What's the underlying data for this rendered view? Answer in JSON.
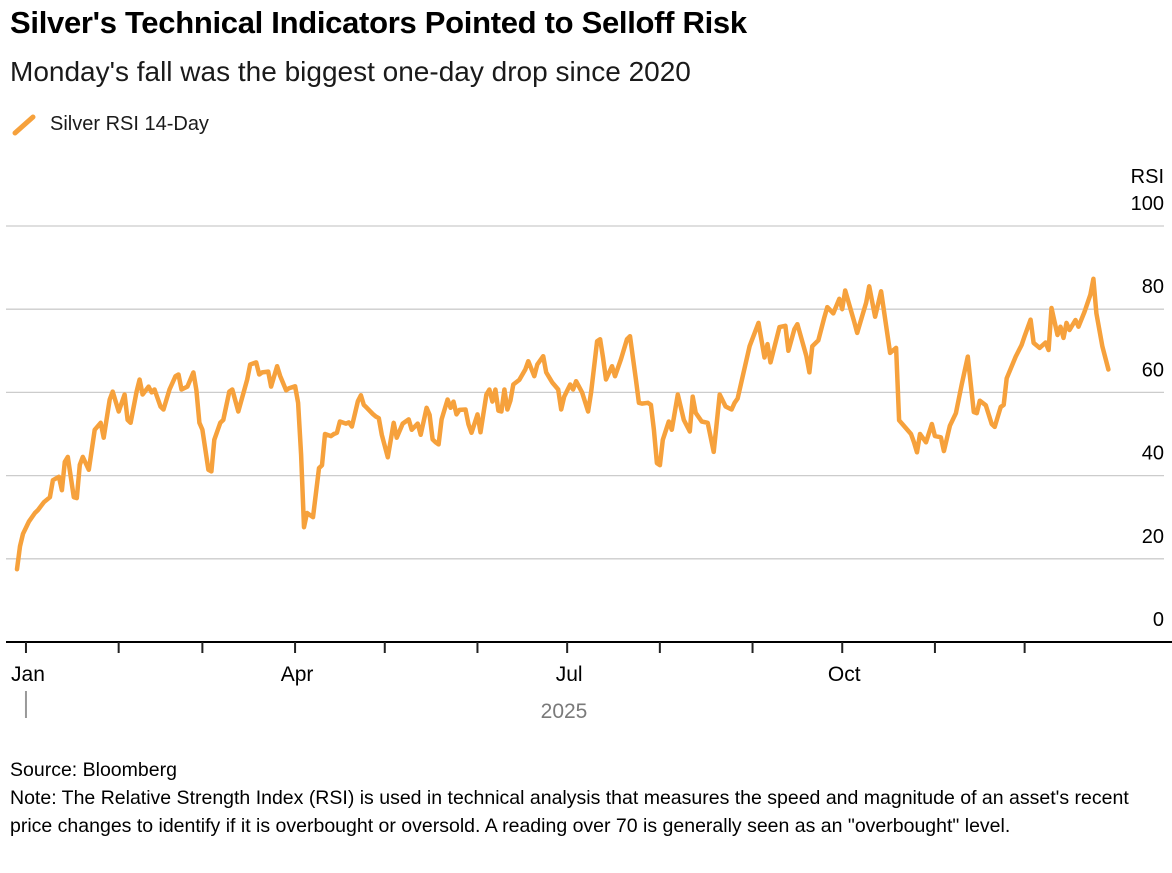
{
  "header": {
    "title": "Silver's Technical Indicators Pointed to Selloff Risk",
    "subtitle": "Monday's fall was the biggest one-day drop since 2020"
  },
  "footer": {
    "source": "Source: Bloomberg",
    "note": "Note: The Relative Strength Index (RSI) is used in technical analysis that measures the speed and magnitude of an asset's recent price changes to identify if it is overbought or oversold. A reading over 70 is generally seen as an \"overbought\" level."
  },
  "chart_data": {
    "type": "line",
    "title": "Silver RSI 14-Day",
    "line_color": "#F6A13C",
    "grid_color": "#cccccc",
    "axis_color": "#000000",
    "tick_color": "#222222",
    "year_color": "#7a7a7a",
    "legend_position": "top-left",
    "grid": true,
    "y_axis": {
      "label": "RSI",
      "ticks": [
        0,
        20,
        40,
        60,
        80,
        100
      ],
      "range": [
        0,
        100
      ],
      "side": "right"
    },
    "x_axis": {
      "year_label": "2025",
      "year_tick_day": 3,
      "month_ticks": [
        {
          "label": "Jan",
          "day": 3
        },
        {
          "label": "",
          "day": 34
        },
        {
          "label": "",
          "day": 62
        },
        {
          "label": "Apr",
          "day": 93
        },
        {
          "label": "",
          "day": 123
        },
        {
          "label": "",
          "day": 154
        },
        {
          "label": "Jul",
          "day": 184
        },
        {
          "label": "",
          "day": 215
        },
        {
          "label": "",
          "day": 246
        },
        {
          "label": "Oct",
          "day": 276
        },
        {
          "label": "",
          "day": 307
        },
        {
          "label": "",
          "day": 337
        }
      ]
    },
    "series": [
      {
        "name": "Silver RSI 14-Day",
        "points": [
          [
            0,
            17.5
          ],
          [
            1,
            23
          ],
          [
            2,
            26
          ],
          [
            3,
            27.5
          ],
          [
            4,
            29
          ],
          [
            6,
            31
          ],
          [
            7,
            31.7
          ],
          [
            9,
            33.6
          ],
          [
            11,
            34.8
          ],
          [
            12,
            38.9
          ],
          [
            14,
            39.7
          ],
          [
            15,
            36.5
          ],
          [
            16,
            43.3
          ],
          [
            17,
            44.5
          ],
          [
            19,
            34.8
          ],
          [
            20,
            34.6
          ],
          [
            21,
            42.6
          ],
          [
            22,
            44.5
          ],
          [
            24,
            41.4
          ],
          [
            26,
            51
          ],
          [
            28,
            52.7
          ],
          [
            29,
            49.1
          ],
          [
            31,
            58.3
          ],
          [
            32,
            60.2
          ],
          [
            34,
            55.4
          ],
          [
            36,
            59.5
          ],
          [
            37,
            53.4
          ],
          [
            38,
            52.7
          ],
          [
            40,
            60.2
          ],
          [
            41,
            63.1
          ],
          [
            42,
            59.5
          ],
          [
            44,
            61.4
          ],
          [
            45,
            60
          ],
          [
            46,
            60.7
          ],
          [
            48,
            56.6
          ],
          [
            49,
            55.9
          ],
          [
            51,
            60.7
          ],
          [
            53,
            63.9
          ],
          [
            54,
            64.3
          ],
          [
            55,
            60.7
          ],
          [
            57,
            61.4
          ],
          [
            59,
            64.8
          ],
          [
            60,
            60.5
          ],
          [
            61,
            52.7
          ],
          [
            62,
            51
          ],
          [
            64,
            41.4
          ],
          [
            65,
            41
          ],
          [
            66,
            48.6
          ],
          [
            68,
            52.7
          ],
          [
            69,
            53.4
          ],
          [
            71,
            60.2
          ],
          [
            72,
            60.7
          ],
          [
            74,
            55.4
          ],
          [
            77,
            63.1
          ],
          [
            78,
            66.7
          ],
          [
            80,
            67.2
          ],
          [
            81,
            64.3
          ],
          [
            82,
            64.8
          ],
          [
            84,
            65
          ],
          [
            85,
            61.4
          ],
          [
            87,
            66.3
          ],
          [
            88,
            64
          ],
          [
            90,
            60.5
          ],
          [
            91,
            61
          ],
          [
            93,
            61.5
          ],
          [
            94,
            57.5
          ],
          [
            95,
            45
          ],
          [
            96,
            27.6
          ],
          [
            97,
            31
          ],
          [
            99,
            30
          ],
          [
            101,
            41.8
          ],
          [
            102,
            42.5
          ],
          [
            103,
            50
          ],
          [
            105,
            49.5
          ],
          [
            106,
            50
          ],
          [
            107,
            50.3
          ],
          [
            108,
            53
          ],
          [
            110,
            52.5
          ],
          [
            111,
            52.8
          ],
          [
            112,
            51.8
          ],
          [
            114,
            57.9
          ],
          [
            115,
            59.3
          ],
          [
            116,
            57
          ],
          [
            117,
            56.3
          ],
          [
            119,
            54.8
          ],
          [
            120,
            54.2
          ],
          [
            121,
            53.8
          ],
          [
            122,
            49.8
          ],
          [
            124,
            44.4
          ],
          [
            126,
            52.7
          ],
          [
            127,
            49.1
          ],
          [
            129,
            52.5
          ],
          [
            131,
            53.5
          ],
          [
            132,
            51
          ],
          [
            134,
            52.5
          ],
          [
            135,
            49.8
          ],
          [
            137,
            56.3
          ],
          [
            138,
            54.6
          ],
          [
            139,
            48.7
          ],
          [
            140,
            48
          ],
          [
            141,
            47.5
          ],
          [
            142,
            53.5
          ],
          [
            144,
            58.3
          ],
          [
            145,
            56.3
          ],
          [
            146,
            57.8
          ],
          [
            147,
            54.7
          ],
          [
            148,
            55.8
          ],
          [
            150,
            55.9
          ],
          [
            151,
            52.3
          ],
          [
            152,
            50.3
          ],
          [
            154,
            54.7
          ],
          [
            155,
            50.4
          ],
          [
            157,
            59.5
          ],
          [
            158,
            60.7
          ],
          [
            159,
            57.8
          ],
          [
            160,
            60.7
          ],
          [
            161,
            55.6
          ],
          [
            162,
            55.4
          ],
          [
            163,
            60.7
          ],
          [
            164,
            55.9
          ],
          [
            165,
            58
          ],
          [
            166,
            61.9
          ],
          [
            168,
            63
          ],
          [
            170,
            65.5
          ],
          [
            171,
            67.5
          ],
          [
            173,
            63.9
          ],
          [
            174,
            66.7
          ],
          [
            176,
            68.7
          ],
          [
            177,
            64.8
          ],
          [
            179,
            62.4
          ],
          [
            181,
            60.7
          ],
          [
            182,
            55.9
          ],
          [
            183,
            59
          ],
          [
            185,
            61.9
          ],
          [
            186,
            60.7
          ],
          [
            187,
            62.7
          ],
          [
            189,
            60
          ],
          [
            191,
            55.4
          ],
          [
            192,
            60
          ],
          [
            194,
            72.3
          ],
          [
            195,
            72.8
          ],
          [
            196,
            68.4
          ],
          [
            197,
            63.1
          ],
          [
            199,
            66.3
          ],
          [
            200,
            63.9
          ],
          [
            202,
            68
          ],
          [
            204,
            72.8
          ],
          [
            205,
            73.5
          ],
          [
            207,
            63.1
          ],
          [
            208,
            57.5
          ],
          [
            209,
            57.3
          ],
          [
            211,
            57.5
          ],
          [
            212,
            57
          ],
          [
            213,
            51
          ],
          [
            214,
            43
          ],
          [
            215,
            42.5
          ],
          [
            216,
            48.6
          ],
          [
            218,
            53
          ],
          [
            219,
            51
          ],
          [
            221,
            59.5
          ],
          [
            223,
            53.4
          ],
          [
            225,
            50.6
          ],
          [
            226,
            59
          ],
          [
            227,
            55.1
          ],
          [
            229,
            53
          ],
          [
            231,
            52.7
          ],
          [
            233,
            45.7
          ],
          [
            235,
            59.5
          ],
          [
            237,
            56.6
          ],
          [
            239,
            55.9
          ],
          [
            240,
            57.5
          ],
          [
            241,
            58.5
          ],
          [
            243,
            64.8
          ],
          [
            245,
            71.1
          ],
          [
            248,
            76.7
          ],
          [
            250,
            68.4
          ],
          [
            251,
            71.6
          ],
          [
            252,
            67.2
          ],
          [
            255,
            75.7
          ],
          [
            257,
            76
          ],
          [
            258,
            70
          ],
          [
            260,
            75.2
          ],
          [
            261,
            76.4
          ],
          [
            264,
            68.7
          ],
          [
            265,
            64.8
          ],
          [
            266,
            71.1
          ],
          [
            268,
            72.5
          ],
          [
            270,
            78
          ],
          [
            271,
            80.5
          ],
          [
            273,
            79
          ],
          [
            275,
            82.5
          ],
          [
            276,
            80
          ],
          [
            277,
            84.5
          ],
          [
            280,
            77
          ],
          [
            281,
            74.3
          ],
          [
            284,
            81.6
          ],
          [
            285,
            85.5
          ],
          [
            287,
            78.2
          ],
          [
            289,
            84.3
          ],
          [
            292,
            69.5
          ],
          [
            294,
            70.7
          ],
          [
            295,
            53.3
          ],
          [
            296,
            52.5
          ],
          [
            299,
            50
          ],
          [
            300,
            48
          ],
          [
            301,
            45.6
          ],
          [
            302,
            50
          ],
          [
            304,
            48
          ],
          [
            306,
            52.4
          ],
          [
            307,
            49.5
          ],
          [
            309,
            49.2
          ],
          [
            310,
            45.9
          ],
          [
            312,
            52
          ],
          [
            314,
            55
          ],
          [
            316,
            62
          ],
          [
            318,
            68.6
          ],
          [
            320,
            55.3
          ],
          [
            321,
            55
          ],
          [
            322,
            58
          ],
          [
            324,
            56.9
          ],
          [
            326,
            52.4
          ],
          [
            327,
            51.7
          ],
          [
            329,
            56.5
          ],
          [
            330,
            57
          ],
          [
            331,
            63.4
          ],
          [
            334,
            68.6
          ],
          [
            336,
            71.4
          ],
          [
            337,
            73.5
          ],
          [
            339,
            77.5
          ],
          [
            340,
            71.9
          ],
          [
            342,
            70.7
          ],
          [
            344,
            72
          ],
          [
            345,
            70.2
          ],
          [
            346,
            80.3
          ],
          [
            348,
            73.8
          ],
          [
            349,
            75.8
          ],
          [
            350,
            73.1
          ],
          [
            351,
            76.7
          ],
          [
            352,
            75
          ],
          [
            354,
            77.4
          ],
          [
            355,
            75.8
          ],
          [
            357,
            79.3
          ],
          [
            359,
            83.5
          ],
          [
            360,
            87.3
          ],
          [
            361,
            79
          ],
          [
            363,
            71
          ],
          [
            365,
            65.5
          ]
        ]
      }
    ]
  }
}
